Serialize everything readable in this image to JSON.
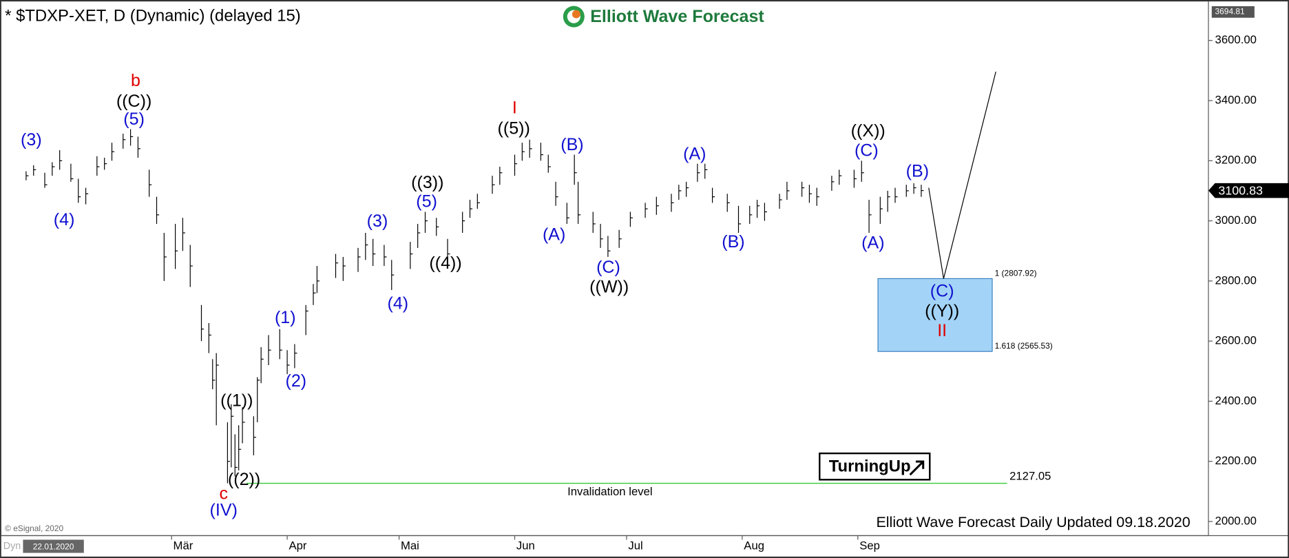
{
  "chart_data": {
    "type": "ohlc",
    "title": "* $TDXP-XET, D (Dynamic) (delayed 15)",
    "brand": "Elliott Wave Forecast",
    "copyright": "© eSignal, 2020",
    "corner_label": "Dyn",
    "start_label": "22.01.2020",
    "footer": "Elliott Wave Forecast Daily Updated 09.18.2020",
    "badge": "TurningUp",
    "x": [
      "2020-01-22",
      "2020-01-24",
      "2020-01-27",
      "2020-01-29",
      "2020-01-31",
      "2020-02-03",
      "2020-02-05",
      "2020-02-07",
      "2020-02-10",
      "2020-02-12",
      "2020-02-14",
      "2020-02-17",
      "2020-02-19",
      "2020-02-21",
      "2020-02-24",
      "2020-02-26",
      "2020-02-28",
      "2020-03-02",
      "2020-03-04",
      "2020-03-06",
      "2020-03-09",
      "2020-03-11",
      "2020-03-12",
      "2020-03-13",
      "2020-03-16",
      "2020-03-17",
      "2020-03-18",
      "2020-03-19",
      "2020-03-20",
      "2020-03-23",
      "2020-03-24",
      "2020-03-25",
      "2020-03-27",
      "2020-03-30",
      "2020-04-01",
      "2020-04-03",
      "2020-04-06",
      "2020-04-08",
      "2020-04-09",
      "2020-04-14",
      "2020-04-16",
      "2020-04-20",
      "2020-04-22",
      "2020-04-24",
      "2020-04-27",
      "2020-04-29",
      "2020-05-04",
      "2020-05-06",
      "2020-05-08",
      "2020-05-11",
      "2020-05-14",
      "2020-05-18",
      "2020-05-20",
      "2020-05-22",
      "2020-05-26",
      "2020-05-28",
      "2020-06-01",
      "2020-06-03",
      "2020-06-05",
      "2020-06-08",
      "2020-06-10",
      "2020-06-12",
      "2020-06-15",
      "2020-06-17",
      "2020-06-18",
      "2020-06-22",
      "2020-06-24",
      "2020-06-26",
      "2020-06-29",
      "2020-07-02",
      "2020-07-06",
      "2020-07-09",
      "2020-07-13",
      "2020-07-15",
      "2020-07-17",
      "2020-07-20",
      "2020-07-22",
      "2020-07-24",
      "2020-07-28",
      "2020-07-31",
      "2020-08-03",
      "2020-08-05",
      "2020-08-07",
      "2020-08-11",
      "2020-08-13",
      "2020-08-17",
      "2020-08-19",
      "2020-08-21",
      "2020-08-25",
      "2020-08-27",
      "2020-08-31",
      "2020-09-02",
      "2020-09-04",
      "2020-09-07",
      "2020-09-09",
      "2020-09-11",
      "2020-09-14",
      "2020-09-16",
      "2020-09-18"
    ],
    "high": [
      3165,
      3185,
      3160,
      3195,
      3235,
      3190,
      3140,
      3110,
      3215,
      3210,
      3260,
      3290,
      3305,
      3280,
      3170,
      3080,
      2960,
      2990,
      3010,
      2920,
      2720,
      2660,
      2540,
      2560,
      2330,
      2390,
      2290,
      2320,
      2380,
      2350,
      2480,
      2580,
      2620,
      2640,
      2570,
      2590,
      2720,
      2790,
      2850,
      2890,
      2880,
      2910,
      2960,
      2940,
      2920,
      2870,
      2930,
      2990,
      3030,
      3010,
      2940,
      3030,
      3070,
      3090,
      3150,
      3180,
      3220,
      3260,
      3270,
      3260,
      3220,
      3130,
      3060,
      3220,
      3130,
      3030,
      2990,
      2950,
      2970,
      3030,
      3060,
      3080,
      3090,
      3120,
      3130,
      3190,
      3190,
      3110,
      3090,
      3050,
      3050,
      3070,
      3060,
      3090,
      3130,
      3130,
      3120,
      3110,
      3150,
      3170,
      3170,
      3200,
      3070,
      3080,
      3100,
      3110,
      3120,
      3125,
      3120
    ],
    "low": [
      3135,
      3150,
      3110,
      3150,
      3170,
      3130,
      3060,
      3055,
      3150,
      3170,
      3200,
      3240,
      3250,
      3210,
      3080,
      2990,
      2800,
      2840,
      2900,
      2780,
      2600,
      2560,
      2440,
      2320,
      2127,
      2180,
      2150,
      2170,
      2260,
      2220,
      2330,
      2460,
      2520,
      2540,
      2490,
      2510,
      2620,
      2720,
      2760,
      2810,
      2800,
      2830,
      2870,
      2850,
      2850,
      2770,
      2840,
      2910,
      2960,
      2950,
      2880,
      2960,
      3010,
      3040,
      3090,
      3120,
      3150,
      3200,
      3210,
      3200,
      3160,
      3050,
      2990,
      3120,
      2990,
      2960,
      2910,
      2880,
      2910,
      2980,
      3010,
      3020,
      3030,
      3070,
      3080,
      3130,
      3140,
      3060,
      3030,
      2960,
      2990,
      3010,
      3000,
      3040,
      3070,
      3080,
      3060,
      3050,
      3100,
      3120,
      3110,
      3130,
      2960,
      2990,
      3030,
      3060,
      3080,
      3090,
      3080
    ],
    "close": [
      3150,
      3170,
      3120,
      3180,
      3200,
      3140,
      3080,
      3090,
      3180,
      3190,
      3230,
      3270,
      3280,
      3240,
      3120,
      3020,
      2880,
      2900,
      2960,
      2850,
      2640,
      2620,
      2470,
      2520,
      2200,
      2350,
      2180,
      2240,
      2330,
      2280,
      2470,
      2540,
      2570,
      2570,
      2520,
      2560,
      2700,
      2760,
      2800,
      2860,
      2850,
      2880,
      2920,
      2890,
      2880,
      2820,
      2890,
      2960,
      3000,
      2980,
      2890,
      3000,
      3040,
      3060,
      3120,
      3160,
      3190,
      3230,
      3240,
      3220,
      3180,
      3080,
      3010,
      3160,
      3020,
      2990,
      2940,
      2900,
      2940,
      3010,
      3040,
      3050,
      3060,
      3100,
      3110,
      3160,
      3170,
      3080,
      3060,
      2990,
      3020,
      3050,
      3030,
      3070,
      3100,
      3110,
      3090,
      3080,
      3130,
      3150,
      3140,
      3160,
      3020,
      3040,
      3080,
      3080,
      3100,
      3110,
      3100.83
    ],
    "color": "#000000",
    "xlim": [
      "2020-01-15",
      "2020-12-04"
    ],
    "xticks": [
      {
        "value": "2020-03-01",
        "label": "Mär"
      },
      {
        "value": "2020-04-01",
        "label": "Apr"
      },
      {
        "value": "2020-05-01",
        "label": "Mai"
      },
      {
        "value": "2020-06-01",
        "label": "Jun"
      },
      {
        "value": "2020-07-01",
        "label": "Jul"
      },
      {
        "value": "2020-08-01",
        "label": "Aug"
      },
      {
        "value": "2020-09-01",
        "label": "Sep"
      }
    ],
    "ylim": [
      1953,
      3734
    ],
    "yticks": [
      {
        "value": 2000,
        "label": "2000.00"
      },
      {
        "value": 2200,
        "label": "2200.00"
      },
      {
        "value": 2400,
        "label": "2400.00"
      },
      {
        "value": 2600,
        "label": "2600.00"
      },
      {
        "value": 2800,
        "label": "2800.00"
      },
      {
        "value": 3000,
        "label": "3000.00"
      },
      {
        "value": 3200,
        "label": "3200.00"
      },
      {
        "value": 3400,
        "label": "3400.00"
      },
      {
        "value": 3600,
        "label": "3600.00"
      }
    ],
    "top_marker": 3694.81,
    "invalidation": {
      "value": 2127.05,
      "label": "Invalidation level",
      "color": "#33cc33"
    },
    "fib_zone": [
      {
        "value": 2807.92,
        "label": "1 (2807.92)"
      },
      {
        "value": 2565.53,
        "label": "1.618 (2565.53)"
      }
    ],
    "fib_color": "#a3d4f7",
    "projection": {
      "x": [
        "2020-09-20",
        "2020-09-24",
        "2020-10-08"
      ],
      "values": [
        3110,
        2807.92,
        3496
      ]
    },
    "wave_labels": [
      {
        "text": "(3)",
        "color": "#1010d0"
      },
      {
        "text": "(4)",
        "color": "#1010d0"
      },
      {
        "text": "b",
        "color": "#e00000"
      },
      {
        "text": "((C))",
        "color": "#000000"
      },
      {
        "text": "(5)",
        "color": "#1010d0"
      },
      {
        "text": "((1))",
        "color": "#000000"
      },
      {
        "text": "((2))",
        "color": "#000000"
      },
      {
        "text": "c",
        "color": "#e00000"
      },
      {
        "text": "(IV)",
        "color": "#1010d0"
      },
      {
        "text": "(1)",
        "color": "#1010d0"
      },
      {
        "text": "(2)",
        "color": "#1010d0"
      },
      {
        "text": "(3)",
        "color": "#1010d0"
      },
      {
        "text": "(4)",
        "color": "#1010d0"
      },
      {
        "text": "((3))",
        "color": "#000000"
      },
      {
        "text": "(5)",
        "color": "#1010d0"
      },
      {
        "text": "((4))",
        "color": "#000000"
      },
      {
        "text": "I",
        "color": "#e00000"
      },
      {
        "text": "((5))",
        "color": "#000000"
      },
      {
        "text": "(B)",
        "color": "#1010d0"
      },
      {
        "text": "(A)",
        "color": "#1010d0"
      },
      {
        "text": "(C)",
        "color": "#1010d0"
      },
      {
        "text": "((W))",
        "color": "#000000"
      },
      {
        "text": "(A)",
        "color": "#1010d0"
      },
      {
        "text": "(B)",
        "color": "#1010d0"
      },
      {
        "text": "((X))",
        "color": "#000000"
      },
      {
        "text": "(C)",
        "color": "#1010d0"
      },
      {
        "text": "(A)",
        "color": "#1010d0"
      },
      {
        "text": "(B)",
        "color": "#1010d0"
      },
      {
        "text": "(C)",
        "color": "#1010d0"
      },
      {
        "text": "((Y))",
        "color": "#000000"
      },
      {
        "text": "II",
        "color": "#e00000"
      }
    ]
  }
}
